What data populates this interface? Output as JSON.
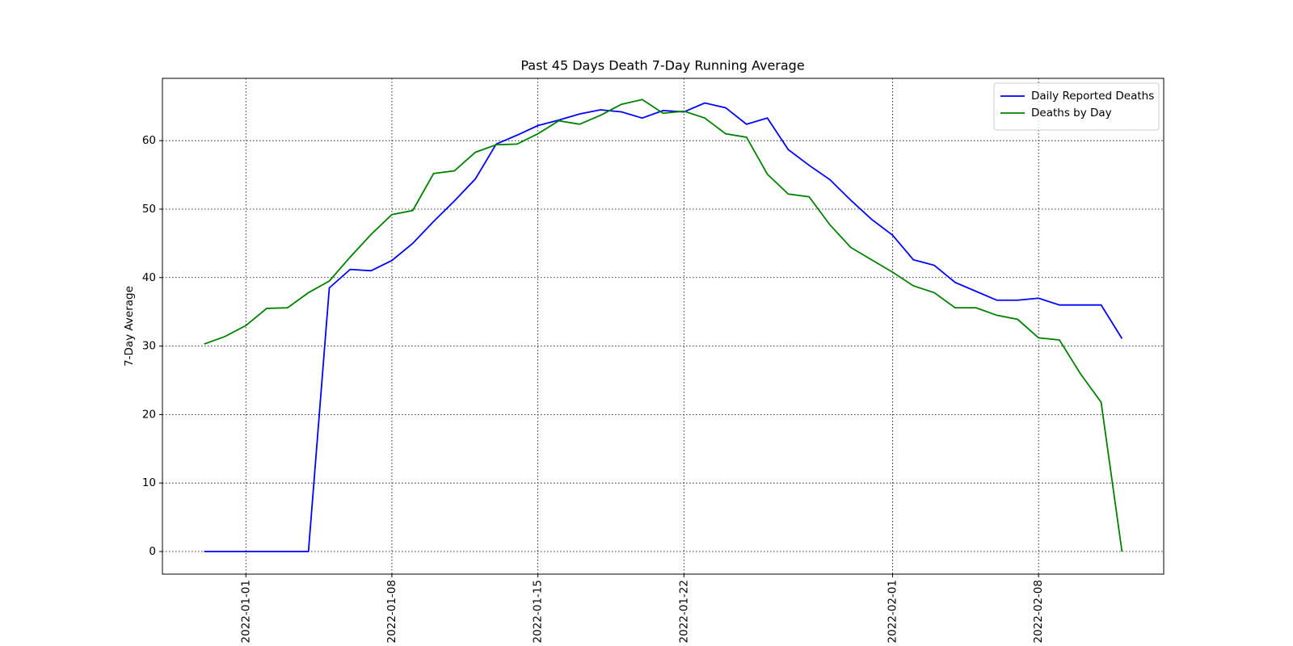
{
  "chart_data": {
    "type": "line",
    "title": "Past 45 Days Death 7-Day Running Average",
    "ylabel": "7-Day Average",
    "x": [
      "2021-12-30",
      "2021-12-31",
      "2022-01-01",
      "2022-01-02",
      "2022-01-03",
      "2022-01-04",
      "2022-01-05",
      "2022-01-06",
      "2022-01-07",
      "2022-01-08",
      "2022-01-09",
      "2022-01-10",
      "2022-01-11",
      "2022-01-12",
      "2022-01-13",
      "2022-01-14",
      "2022-01-15",
      "2022-01-16",
      "2022-01-17",
      "2022-01-18",
      "2022-01-19",
      "2022-01-20",
      "2022-01-21",
      "2022-01-22",
      "2022-01-23",
      "2022-01-24",
      "2022-01-25",
      "2022-01-26",
      "2022-01-27",
      "2022-01-28",
      "2022-01-29",
      "2022-01-30",
      "2022-01-31",
      "2022-02-01",
      "2022-02-02",
      "2022-02-03",
      "2022-02-04",
      "2022-02-05",
      "2022-02-06",
      "2022-02-07",
      "2022-02-08",
      "2022-02-09",
      "2022-02-10",
      "2022-02-11",
      "2022-02-12"
    ],
    "series": [
      {
        "name": "Daily Reported Deaths",
        "color": "#0000ff",
        "values": [
          0,
          0,
          0,
          0,
          0,
          0,
          38.5,
          41.2,
          41.0,
          42.5,
          45.0,
          48.2,
          51.2,
          54.4,
          59.5,
          60.8,
          62.2,
          63.0,
          63.9,
          64.5,
          64.2,
          63.3,
          64.4,
          64.2,
          65.5,
          64.8,
          62.4,
          63.3,
          58.7,
          56.4,
          54.3,
          51.3,
          48.5,
          46.2,
          42.6,
          41.8,
          39.3,
          38.0,
          36.7,
          36.7,
          37.0,
          36.0,
          36.0,
          36.0,
          31.1
        ]
      },
      {
        "name": "Deaths by Day",
        "color": "#008000",
        "values": [
          30.3,
          31.4,
          33.0,
          35.5,
          35.6,
          37.8,
          39.5,
          43.0,
          46.3,
          49.2,
          49.8,
          55.2,
          55.6,
          58.3,
          59.4,
          59.5,
          61.0,
          62.9,
          62.4,
          63.7,
          65.3,
          66.0,
          64.0,
          64.3,
          63.3,
          61.0,
          60.5,
          55.1,
          52.2,
          51.8,
          47.7,
          44.4,
          42.6,
          40.8,
          38.8,
          37.8,
          35.6,
          35.6,
          34.5,
          33.9,
          31.2,
          30.9,
          26.0,
          21.8,
          0
        ]
      }
    ],
    "xlim": [
      "2021-12-28",
      "2022-02-14"
    ],
    "xticks": [
      "2022-01-01",
      "2022-01-08",
      "2022-01-15",
      "2022-01-22",
      "2022-02-01",
      "2022-02-08"
    ],
    "ylim": [
      -3.3,
      69.1
    ],
    "yticks": [
      0,
      10,
      20,
      30,
      40,
      50,
      60
    ],
    "grid": true,
    "legend": "upper right"
  }
}
